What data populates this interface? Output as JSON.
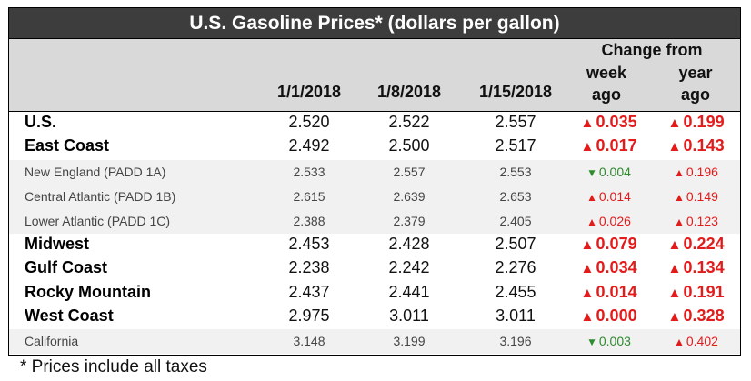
{
  "title": "U.S. Gasoline Prices* (dollars per gallon)",
  "colors": {
    "up": "#e31b1b",
    "down": "#2e8b2e",
    "title_bg": "#3d3d3d",
    "header_bg": "#d9d9d9"
  },
  "headers": {
    "dates": [
      "1/1/2018",
      "1/8/2018",
      "1/15/2018"
    ],
    "change_from": "Change from",
    "week_ago_1": "week",
    "week_ago_2": "ago",
    "year_ago_1": "year",
    "year_ago_2": "ago"
  },
  "rows": [
    {
      "region": "U.S.",
      "type": "main",
      "p1": "2.520",
      "p2": "2.522",
      "p3": "2.557",
      "week_dir": "up",
      "week_icon": "triangle-up-icon",
      "week": "0.035",
      "year_dir": "up",
      "year_icon": "triangle-up-icon",
      "year": "0.199"
    },
    {
      "region": "East Coast",
      "type": "main",
      "p1": "2.492",
      "p2": "2.500",
      "p3": "2.517",
      "week_dir": "up",
      "week_icon": "triangle-up-icon",
      "week": "0.017",
      "year_dir": "up",
      "year_icon": "triangle-up-icon",
      "year": "0.143"
    },
    {
      "region": "New England (PADD 1A)",
      "type": "sub",
      "p1": "2.533",
      "p2": "2.557",
      "p3": "2.553",
      "week_dir": "down",
      "week_icon": "triangle-down-icon",
      "week": "0.004",
      "year_dir": "up",
      "year_icon": "triangle-up-icon",
      "year": "0.196"
    },
    {
      "region": "Central Atlantic (PADD 1B)",
      "type": "sub",
      "p1": "2.615",
      "p2": "2.639",
      "p3": "2.653",
      "week_dir": "up",
      "week_icon": "triangle-up-icon",
      "week": "0.014",
      "year_dir": "up",
      "year_icon": "triangle-up-icon",
      "year": "0.149"
    },
    {
      "region": "Lower Atlantic (PADD 1C)",
      "type": "sub",
      "p1": "2.388",
      "p2": "2.379",
      "p3": "2.405",
      "week_dir": "up",
      "week_icon": "triangle-up-icon",
      "week": "0.026",
      "year_dir": "up",
      "year_icon": "triangle-up-icon",
      "year": "0.123"
    },
    {
      "region": "Midwest",
      "type": "main",
      "p1": "2.453",
      "p2": "2.428",
      "p3": "2.507",
      "week_dir": "up",
      "week_icon": "triangle-up-icon",
      "week": "0.079",
      "year_dir": "up",
      "year_icon": "triangle-up-icon",
      "year": "0.224"
    },
    {
      "region": "Gulf Coast",
      "type": "main",
      "p1": "2.238",
      "p2": "2.242",
      "p3": "2.276",
      "week_dir": "up",
      "week_icon": "triangle-up-icon",
      "week": "0.034",
      "year_dir": "up",
      "year_icon": "triangle-up-icon",
      "year": "0.134"
    },
    {
      "region": "Rocky Mountain",
      "type": "main",
      "p1": "2.437",
      "p2": "2.441",
      "p3": "2.455",
      "week_dir": "up",
      "week_icon": "triangle-up-icon",
      "week": "0.014",
      "year_dir": "up",
      "year_icon": "triangle-up-icon",
      "year": "0.191"
    },
    {
      "region": "West Coast",
      "type": "main",
      "p1": "2.975",
      "p2": "3.011",
      "p3": "3.011",
      "week_dir": "up",
      "week_icon": "triangle-up-icon",
      "week": "0.000",
      "year_dir": "up",
      "year_icon": "triangle-up-icon",
      "year": "0.328"
    },
    {
      "region": "California",
      "type": "sub",
      "p1": "3.148",
      "p2": "3.199",
      "p3": "3.196",
      "week_dir": "down",
      "week_icon": "triangle-down-icon",
      "week": "0.003",
      "year_dir": "up",
      "year_icon": "triangle-up-icon",
      "year": "0.402"
    }
  ],
  "footnote": "* Prices include all taxes"
}
